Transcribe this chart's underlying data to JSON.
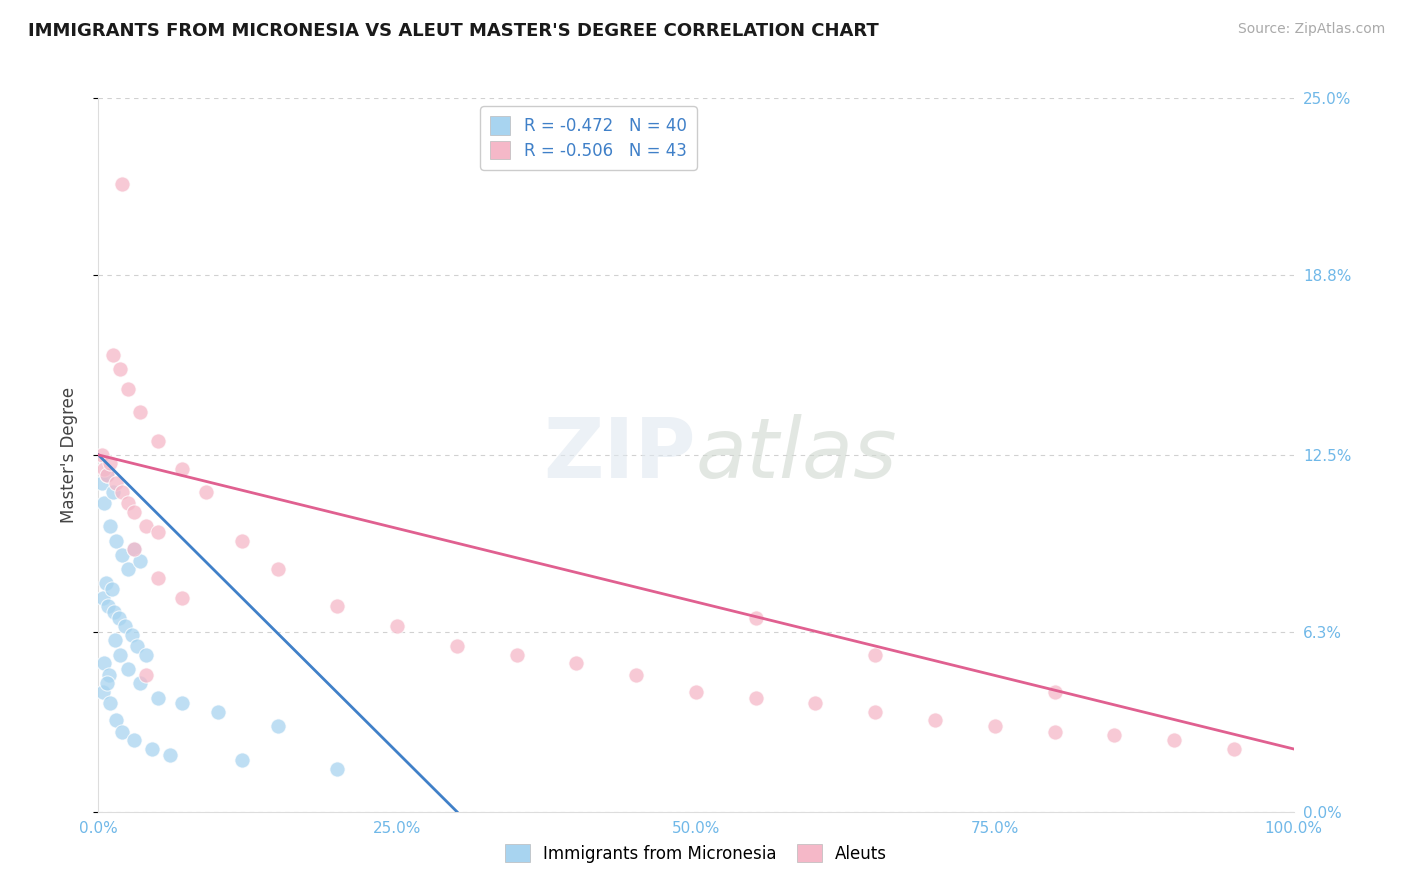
{
  "title": "IMMIGRANTS FROM MICRONESIA VS ALEUT MASTER'S DEGREE CORRELATION CHART",
  "source_text": "Source: ZipAtlas.com",
  "ylabel": "Master's Degree",
  "legend_label_1": "Immigrants from Micronesia",
  "legend_label_2": "Aleuts",
  "R1": -0.472,
  "N1": 40,
  "R2": -0.506,
  "N2": 43,
  "color1": "#a8d4f0",
  "color2": "#f5b8c8",
  "trend_color1": "#4080c8",
  "trend_color2": "#e06090",
  "axis_label_color": "#70b8e8",
  "xlim": [
    0.0,
    100.0
  ],
  "ylim": [
    0.0,
    0.25
  ],
  "yticks": [
    0.0,
    0.063,
    0.125,
    0.188,
    0.25
  ],
  "ytick_labels": [
    "0.0%",
    "6.3%",
    "12.5%",
    "18.8%",
    "25.0%"
  ],
  "xtick_labels": [
    "0.0%",
    "25.0%",
    "50.0%",
    "75.0%",
    "100.0%"
  ],
  "xticks": [
    0.0,
    25.0,
    50.0,
    75.0,
    100.0
  ],
  "blue_scatter_x": [
    0.3,
    0.5,
    0.7,
    1.0,
    1.2,
    1.5,
    2.0,
    2.5,
    3.0,
    3.5,
    0.4,
    0.6,
    0.8,
    1.1,
    1.3,
    1.7,
    2.2,
    2.8,
    3.2,
    4.0,
    0.5,
    0.9,
    1.4,
    1.8,
    2.5,
    3.5,
    5.0,
    7.0,
    10.0,
    15.0,
    0.4,
    0.7,
    1.0,
    1.5,
    2.0,
    3.0,
    4.5,
    6.0,
    12.0,
    20.0
  ],
  "blue_scatter_y": [
    0.115,
    0.108,
    0.118,
    0.1,
    0.112,
    0.095,
    0.09,
    0.085,
    0.092,
    0.088,
    0.075,
    0.08,
    0.072,
    0.078,
    0.07,
    0.068,
    0.065,
    0.062,
    0.058,
    0.055,
    0.052,
    0.048,
    0.06,
    0.055,
    0.05,
    0.045,
    0.04,
    0.038,
    0.035,
    0.03,
    0.042,
    0.045,
    0.038,
    0.032,
    0.028,
    0.025,
    0.022,
    0.02,
    0.018,
    0.015
  ],
  "pink_scatter_x": [
    0.3,
    0.5,
    0.7,
    1.0,
    1.5,
    2.0,
    2.5,
    3.0,
    4.0,
    5.0,
    1.2,
    1.8,
    2.5,
    3.5,
    5.0,
    7.0,
    9.0,
    12.0,
    15.0,
    20.0,
    25.0,
    30.0,
    35.0,
    40.0,
    45.0,
    50.0,
    55.0,
    60.0,
    65.0,
    70.0,
    75.0,
    80.0,
    85.0,
    90.0,
    95.0,
    3.0,
    5.0,
    7.0,
    55.0,
    65.0,
    80.0,
    2.0,
    4.0
  ],
  "pink_scatter_y": [
    0.125,
    0.12,
    0.118,
    0.122,
    0.115,
    0.112,
    0.108,
    0.105,
    0.1,
    0.098,
    0.16,
    0.155,
    0.148,
    0.14,
    0.13,
    0.12,
    0.112,
    0.095,
    0.085,
    0.072,
    0.065,
    0.058,
    0.055,
    0.052,
    0.048,
    0.042,
    0.04,
    0.038,
    0.035,
    0.032,
    0.03,
    0.028,
    0.027,
    0.025,
    0.022,
    0.092,
    0.082,
    0.075,
    0.068,
    0.055,
    0.042,
    0.22,
    0.048
  ],
  "blue_trend_x": [
    0.0,
    30.0
  ],
  "blue_trend_y": [
    0.125,
    0.0
  ],
  "pink_trend_x": [
    0.0,
    100.0
  ],
  "pink_trend_y": [
    0.125,
    0.022
  ],
  "watermark": "ZIPatlas",
  "background_color": "#ffffff",
  "grid_color": "#cccccc"
}
